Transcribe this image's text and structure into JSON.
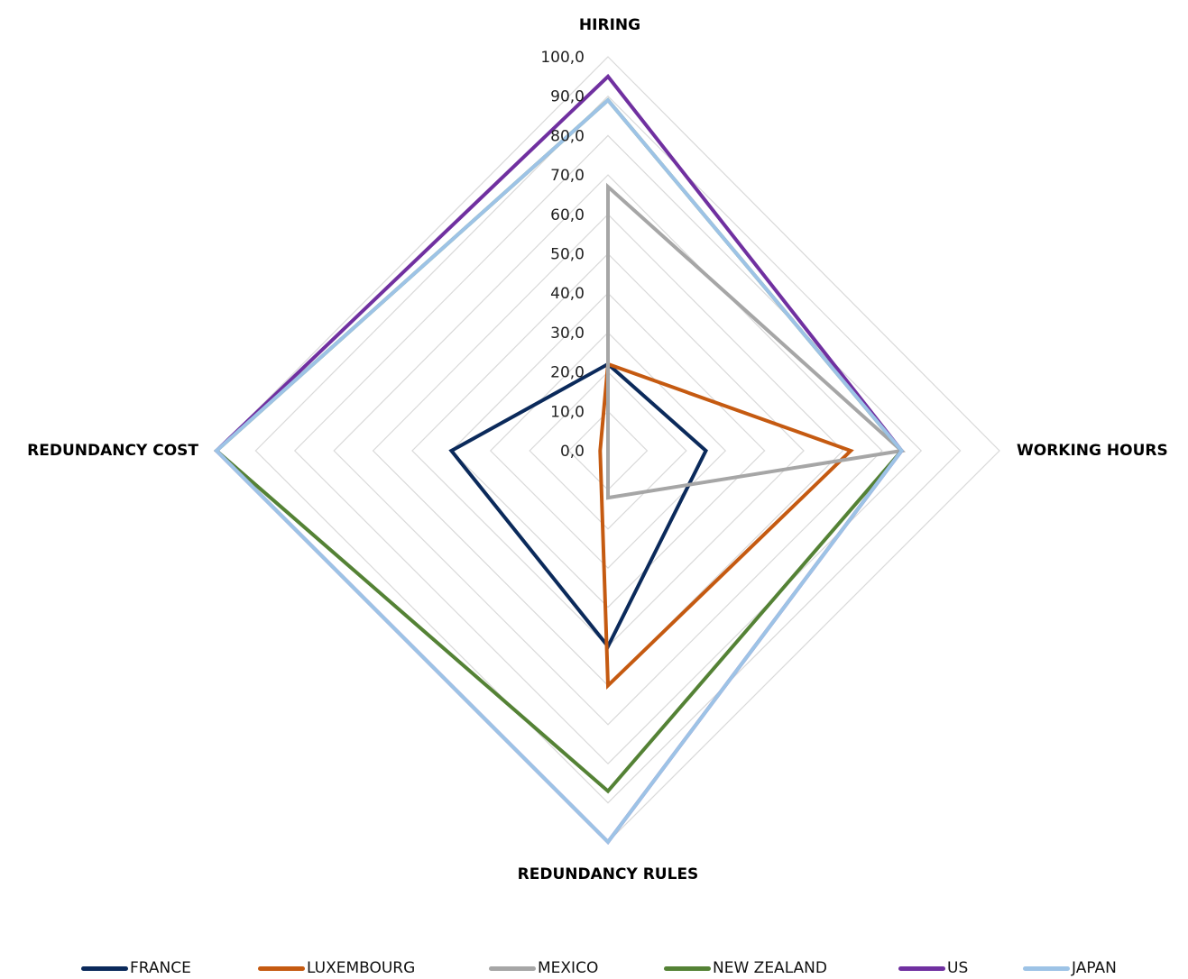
{
  "chart_data": {
    "type": "radar",
    "axes": [
      "HIRING",
      "WORKING HOURS",
      "REDUNDANCY RULES",
      "REDUNDANCY COST"
    ],
    "rmax": 100,
    "ticks": [
      "0,0",
      "10,0",
      "20,0",
      "30,0",
      "40,0",
      "50,0",
      "60,0",
      "70,0",
      "80,0",
      "90,0",
      "100,0"
    ],
    "grid": true,
    "legend_position": "bottom",
    "series": [
      {
        "name": "FRANCE",
        "color": "#0b2a5b",
        "values": [
          22,
          25,
          50,
          40
        ]
      },
      {
        "name": "LUXEMBOURG",
        "color": "#c55a11",
        "values": [
          22,
          62,
          60,
          2
        ]
      },
      {
        "name": "MEXICO",
        "color": "#a6a6a6",
        "values": [
          67,
          75,
          12,
          0
        ]
      },
      {
        "name": "NEW ZEALAND",
        "color": "#548235",
        "values": [
          89,
          75,
          87,
          100
        ]
      },
      {
        "name": "US",
        "color": "#7030a0",
        "values": [
          95,
          75,
          100,
          100
        ]
      },
      {
        "name": "JAPAN",
        "color": "#9dc3e6",
        "values": [
          89,
          75,
          100,
          100
        ]
      }
    ]
  }
}
